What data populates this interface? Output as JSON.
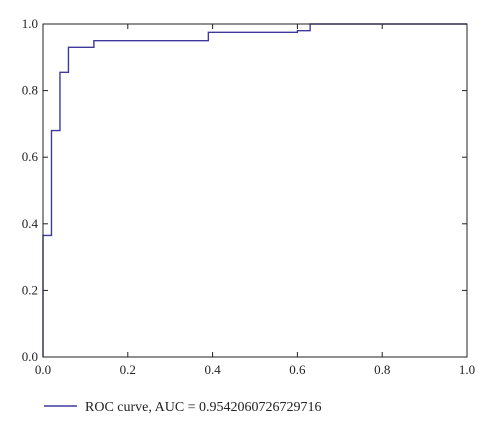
{
  "chart_data": {
    "type": "line",
    "title": "",
    "xlabel": "",
    "ylabel": "",
    "xlim": [
      0.0,
      1.0
    ],
    "ylim": [
      0.0,
      1.0
    ],
    "x_ticks": [
      "0.0",
      "0.2",
      "0.4",
      "0.6",
      "0.8",
      "1.0"
    ],
    "y_ticks": [
      "0.0",
      "0.2",
      "0.4",
      "0.6",
      "0.8",
      "1.0"
    ],
    "grid": false,
    "legend_position": "bottom-left",
    "series": [
      {
        "name": "ROC curve, AUC = 0.9542060726729716",
        "color": "#3d3a9c",
        "step": true,
        "x": [
          0.0,
          0.0,
          0.02,
          0.02,
          0.04,
          0.04,
          0.06,
          0.06,
          0.12,
          0.12,
          0.39,
          0.39,
          0.6,
          0.6,
          0.63,
          0.63,
          1.0
        ],
        "y": [
          0.0,
          0.365,
          0.365,
          0.68,
          0.68,
          0.855,
          0.855,
          0.93,
          0.93,
          0.95,
          0.95,
          0.975,
          0.975,
          0.98,
          0.98,
          1.0,
          1.0
        ]
      }
    ]
  }
}
